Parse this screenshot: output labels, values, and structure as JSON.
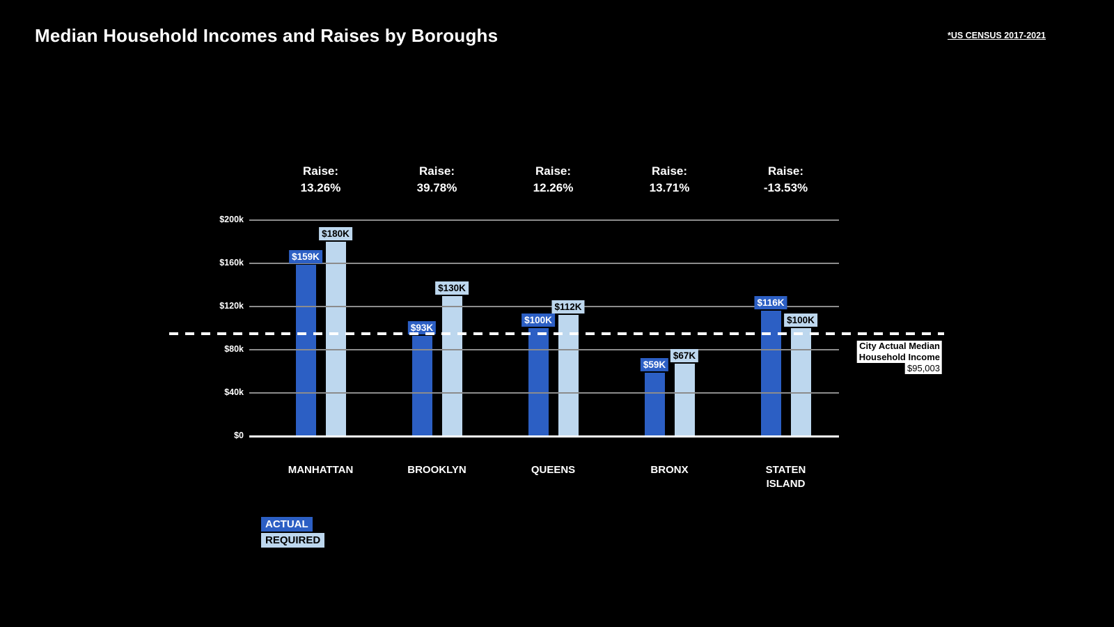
{
  "title": "Median Household Incomes and Raises by Boroughs",
  "source_note": "*US CENSUS 2017-2021",
  "colors": {
    "background": "#000000",
    "actual": "#2c5fc4",
    "required": "#bdd7ee",
    "grid": "#8c8c8c",
    "axis": "#ffffff",
    "reference_line": "#ffffff"
  },
  "legend": {
    "actual_label": "ACTUAL",
    "required_label": "REQUIRED"
  },
  "reference_annotation": {
    "line1": "City Actual Median",
    "line2": "Household Income",
    "value": "$95,003"
  },
  "chart_data": {
    "type": "bar",
    "title": "Median Household Incomes and Raises by Boroughs",
    "categories": [
      "MANHATTAN",
      "BROOKLYN",
      "QUEENS",
      "BRONX",
      "STATEN ISLAND"
    ],
    "series": [
      {
        "name": "ACTUAL",
        "color_key": "actual",
        "values_usd": [
          159000,
          93000,
          100000,
          59000,
          116000
        ],
        "labels": [
          "$159K",
          "$93K",
          "$100K",
          "$59K",
          "$116K"
        ]
      },
      {
        "name": "REQUIRED",
        "color_key": "required",
        "values_usd": [
          180000,
          130000,
          112000,
          67000,
          100000
        ],
        "labels": [
          "$180K",
          "$130K",
          "$112K",
          "$67K",
          "$100K"
        ]
      }
    ],
    "raises": {
      "prefix": "Raise:",
      "values": [
        "13.26%",
        "39.78%",
        "12.26%",
        "13.71%",
        "-13.53%"
      ]
    },
    "y_axis": {
      "ylim": [
        0,
        200000
      ],
      "grid": true,
      "ticks": [
        {
          "value": 0,
          "label": "$0"
        },
        {
          "value": 40000,
          "label": "$40k"
        },
        {
          "value": 80000,
          "label": "$80k"
        },
        {
          "value": 120000,
          "label": "$120k"
        },
        {
          "value": 160000,
          "label": "$160k"
        },
        {
          "value": 200000,
          "label": "$200k"
        }
      ]
    },
    "reference_line": {
      "value": 95003,
      "label": "City Actual Median Household Income",
      "value_label": "$95,003"
    },
    "legend_position": "bottom-left"
  }
}
